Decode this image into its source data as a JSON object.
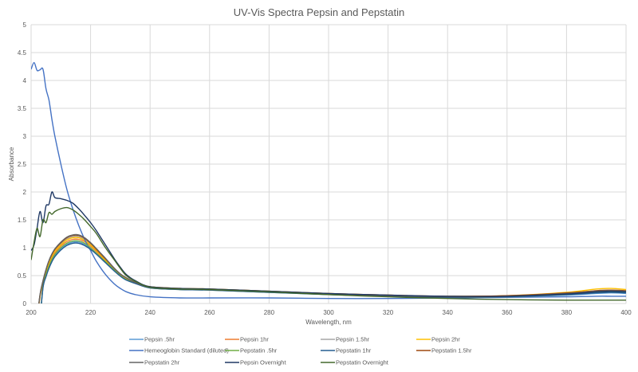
{
  "chart_data": {
    "type": "line",
    "title": "UV-Vis Spectra Pepsin and Pepstatin",
    "xlabel": "Wavelength, nm",
    "ylabel": "Absorbance",
    "xlim": [
      200,
      400
    ],
    "ylim": [
      0,
      5
    ],
    "xticks": [
      "200",
      "220",
      "240",
      "260",
      "280",
      "300",
      "320",
      "340",
      "360",
      "380",
      "400"
    ],
    "yticks": [
      "0",
      "0.5",
      "1",
      "1.5",
      "2",
      "2.5",
      "3",
      "3.5",
      "4",
      "4.5",
      "5"
    ],
    "grid": true,
    "legend_position": "bottom",
    "x": [
      200,
      201,
      202,
      203,
      204,
      205,
      206,
      207,
      208,
      210,
      212,
      214,
      216,
      218,
      220,
      222,
      225,
      228,
      230,
      232,
      235,
      240,
      250,
      260,
      280,
      300,
      320,
      340,
      360,
      380,
      390,
      395,
      400
    ],
    "series": [
      {
        "name": "Pepsin .5hr",
        "color": "#5B9BD5",
        "values": [
          null,
          null,
          null,
          0,
          0.3,
          0.5,
          0.65,
          0.77,
          0.86,
          0.98,
          1.06,
          1.1,
          1.1,
          1.06,
          0.98,
          0.89,
          0.74,
          0.59,
          0.5,
          0.43,
          0.37,
          0.29,
          0.26,
          0.25,
          0.21,
          0.17,
          0.14,
          0.12,
          0.12,
          0.15,
          0.18,
          0.19,
          0.18
        ]
      },
      {
        "name": "Pepsin 1hr",
        "color": "#ED7D31",
        "values": [
          null,
          null,
          0,
          0.12,
          0.36,
          0.56,
          0.71,
          0.83,
          0.91,
          1.03,
          1.11,
          1.15,
          1.15,
          1.11,
          1.03,
          0.93,
          0.77,
          0.61,
          0.51,
          0.44,
          0.37,
          0.29,
          0.26,
          0.25,
          0.21,
          0.17,
          0.14,
          0.12,
          0.13,
          0.18,
          0.22,
          0.23,
          0.21
        ]
      },
      {
        "name": "Pepsin 1.5hr",
        "color": "#A5A5A5",
        "values": [
          null,
          null,
          0,
          0.14,
          0.38,
          0.58,
          0.74,
          0.86,
          0.95,
          1.07,
          1.16,
          1.2,
          1.2,
          1.15,
          1.07,
          0.96,
          0.79,
          0.62,
          0.52,
          0.45,
          0.38,
          0.29,
          0.26,
          0.25,
          0.21,
          0.17,
          0.14,
          0.12,
          0.13,
          0.18,
          0.23,
          0.24,
          0.22
        ]
      },
      {
        "name": "Pepsin 2hr",
        "color": "#FFC000",
        "values": [
          null,
          null,
          0,
          0.13,
          0.37,
          0.57,
          0.73,
          0.85,
          0.94,
          1.05,
          1.14,
          1.18,
          1.18,
          1.13,
          1.05,
          0.95,
          0.78,
          0.62,
          0.52,
          0.45,
          0.38,
          0.3,
          0.27,
          0.26,
          0.22,
          0.18,
          0.15,
          0.13,
          0.14,
          0.2,
          0.26,
          0.27,
          0.25
        ]
      },
      {
        "name": "Hemeoglobin Standard (diluted)",
        "color": "#4472C4",
        "values": [
          4.2,
          4.32,
          4.18,
          4.19,
          4.2,
          3.85,
          3.65,
          3.3,
          3.0,
          2.5,
          2.05,
          1.7,
          1.4,
          1.15,
          0.95,
          0.75,
          0.52,
          0.35,
          0.27,
          0.21,
          0.16,
          0.12,
          0.1,
          0.1,
          0.1,
          0.09,
          0.09,
          0.1,
          0.11,
          0.12,
          0.13,
          0.13,
          0.13
        ]
      },
      {
        "name": "Pepstatin .5hr",
        "color": "#70AD47",
        "values": [
          null,
          null,
          null,
          0,
          0.31,
          0.52,
          0.67,
          0.79,
          0.88,
          1.0,
          1.08,
          1.12,
          1.12,
          1.08,
          1.0,
          0.9,
          0.75,
          0.6,
          0.5,
          0.43,
          0.37,
          0.28,
          0.25,
          0.24,
          0.2,
          0.16,
          0.13,
          0.11,
          0.12,
          0.16,
          0.2,
          0.21,
          0.2
        ]
      },
      {
        "name": "Pepstatin 1hr",
        "color": "#255E91",
        "values": [
          null,
          null,
          null,
          0,
          0.28,
          0.48,
          0.63,
          0.75,
          0.84,
          0.96,
          1.04,
          1.08,
          1.08,
          1.04,
          0.97,
          0.88,
          0.73,
          0.58,
          0.49,
          0.42,
          0.36,
          0.28,
          0.25,
          0.24,
          0.2,
          0.16,
          0.13,
          0.11,
          0.12,
          0.16,
          0.19,
          0.2,
          0.19
        ]
      },
      {
        "name": "Pepstatin 1.5hr",
        "color": "#9E480E",
        "values": [
          null,
          null,
          0,
          0.15,
          0.4,
          0.6,
          0.76,
          0.88,
          0.97,
          1.09,
          1.18,
          1.22,
          1.22,
          1.17,
          1.08,
          0.97,
          0.8,
          0.63,
          0.53,
          0.46,
          0.38,
          0.3,
          0.27,
          0.26,
          0.22,
          0.18,
          0.15,
          0.13,
          0.14,
          0.19,
          0.23,
          0.24,
          0.23
        ]
      },
      {
        "name": "Pepstatin 2hr",
        "color": "#636363",
        "values": [
          null,
          null,
          0,
          0.16,
          0.41,
          0.61,
          0.77,
          0.89,
          0.98,
          1.1,
          1.19,
          1.23,
          1.23,
          1.18,
          1.09,
          0.98,
          0.81,
          0.63,
          0.53,
          0.46,
          0.38,
          0.29,
          0.26,
          0.25,
          0.21,
          0.17,
          0.14,
          0.12,
          0.13,
          0.18,
          0.22,
          0.23,
          0.22
        ]
      },
      {
        "name": "Pepsin Overnight",
        "color": "#1F3864",
        "values": [
          0.95,
          1.05,
          1.35,
          1.65,
          1.45,
          1.75,
          1.78,
          2.0,
          1.9,
          1.88,
          1.85,
          1.8,
          1.7,
          1.58,
          1.45,
          1.3,
          1.05,
          0.8,
          0.65,
          0.52,
          0.41,
          0.3,
          0.27,
          0.26,
          0.22,
          0.18,
          0.15,
          0.13,
          0.13,
          0.17,
          0.21,
          0.22,
          0.21
        ]
      },
      {
        "name": "Pepstatin Overnight",
        "color": "#43682B",
        "values": [
          0.78,
          1.1,
          1.35,
          1.2,
          1.5,
          1.45,
          1.63,
          1.6,
          1.65,
          1.7,
          1.72,
          1.68,
          1.6,
          1.5,
          1.38,
          1.25,
          1.0,
          0.78,
          0.63,
          0.5,
          0.4,
          0.29,
          0.26,
          0.25,
          0.21,
          0.16,
          0.12,
          0.09,
          0.07,
          0.06,
          0.06,
          0.06,
          0.06
        ]
      }
    ]
  }
}
